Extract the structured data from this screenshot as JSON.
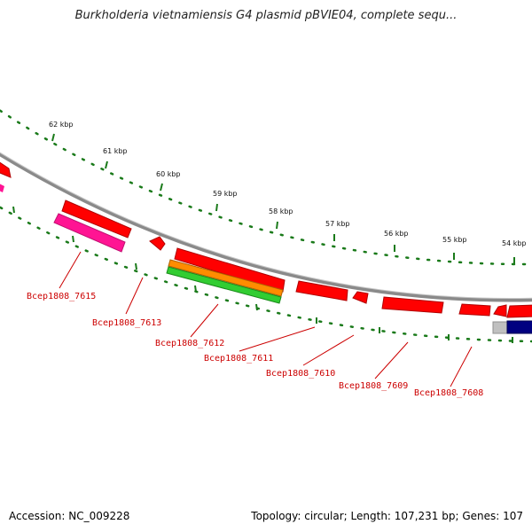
{
  "title": "Burkholderia vietnamiensis G4 plasmid pBVIE04, complete sequ...",
  "footer": {
    "accession": "Accession: NC_009228",
    "summary": "Topology: circular; Length: 107,231 bp; Genes: 107"
  },
  "scale_labels": [
    "62 kbp",
    "61 kbp",
    "60 kbp",
    "59 kbp",
    "58 kbp",
    "57 kbp",
    "56 kbp",
    "55 kbp",
    "54 kbp"
  ],
  "gene_labels": [
    "Bcep1808_7615",
    "Bcep1808_7613",
    "Bcep1808_7612",
    "Bcep1808_7611",
    "Bcep1808_7610",
    "Bcep1808_7609",
    "Bcep1808_7608"
  ],
  "colors": {
    "backbone": "#8a8a8a",
    "tick": "#1a7a1a",
    "gene_red": "#ff0000",
    "gene_magenta": "#ff1493",
    "gene_orange": "#ff8c00",
    "gene_green": "#32cd32",
    "gene_navy": "#000080",
    "gene_gray": "#c0c0c0",
    "label": "#cc0000"
  }
}
